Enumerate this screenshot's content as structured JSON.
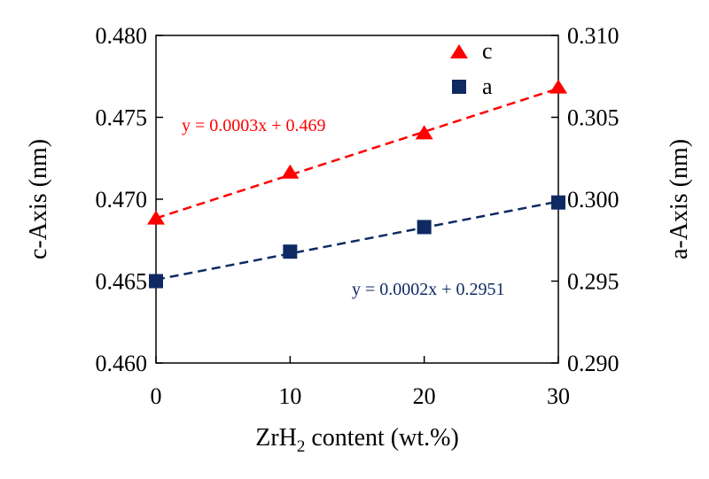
{
  "chart_data": {
    "type": "scatter",
    "xlabel_main": "ZrH",
    "xlabel_sub": "2",
    "xlabel_rest": " content (wt.%)",
    "ylabel_left": "c-Axis (nm)",
    "ylabel_right": "a-Axis (nm)",
    "x_ticks": [
      "0",
      "10",
      "20",
      "30"
    ],
    "y_left_ticks": [
      "0.460",
      "0.465",
      "0.470",
      "0.475",
      "0.480"
    ],
    "y_right_ticks": [
      "0.290",
      "0.295",
      "0.300",
      "0.305",
      "0.310"
    ],
    "xlim": [
      0,
      30
    ],
    "ylim_left": [
      0.46,
      0.48
    ],
    "ylim_right": [
      0.29,
      0.31
    ],
    "grid": false,
    "legend_position": "top-right",
    "series": [
      {
        "name": "c",
        "axis": "left",
        "marker": "triangle",
        "color": "#ff0000",
        "x": [
          0,
          10,
          20,
          30
        ],
        "y": [
          0.4688,
          0.4716,
          0.474,
          0.4768
        ],
        "trendline": {
          "slope": 0.0003,
          "intercept": 0.469,
          "equation": "y = 0.0003x + 0.469"
        }
      },
      {
        "name": "a",
        "axis": "right",
        "marker": "square",
        "color": "#0f2a63",
        "x": [
          0,
          10,
          20,
          30
        ],
        "y": [
          0.295,
          0.2968,
          0.2983,
          0.2998
        ],
        "trendline": {
          "slope": 0.0002,
          "intercept": 0.2951,
          "equation": "y = 0.0002x + 0.2951"
        }
      }
    ]
  }
}
